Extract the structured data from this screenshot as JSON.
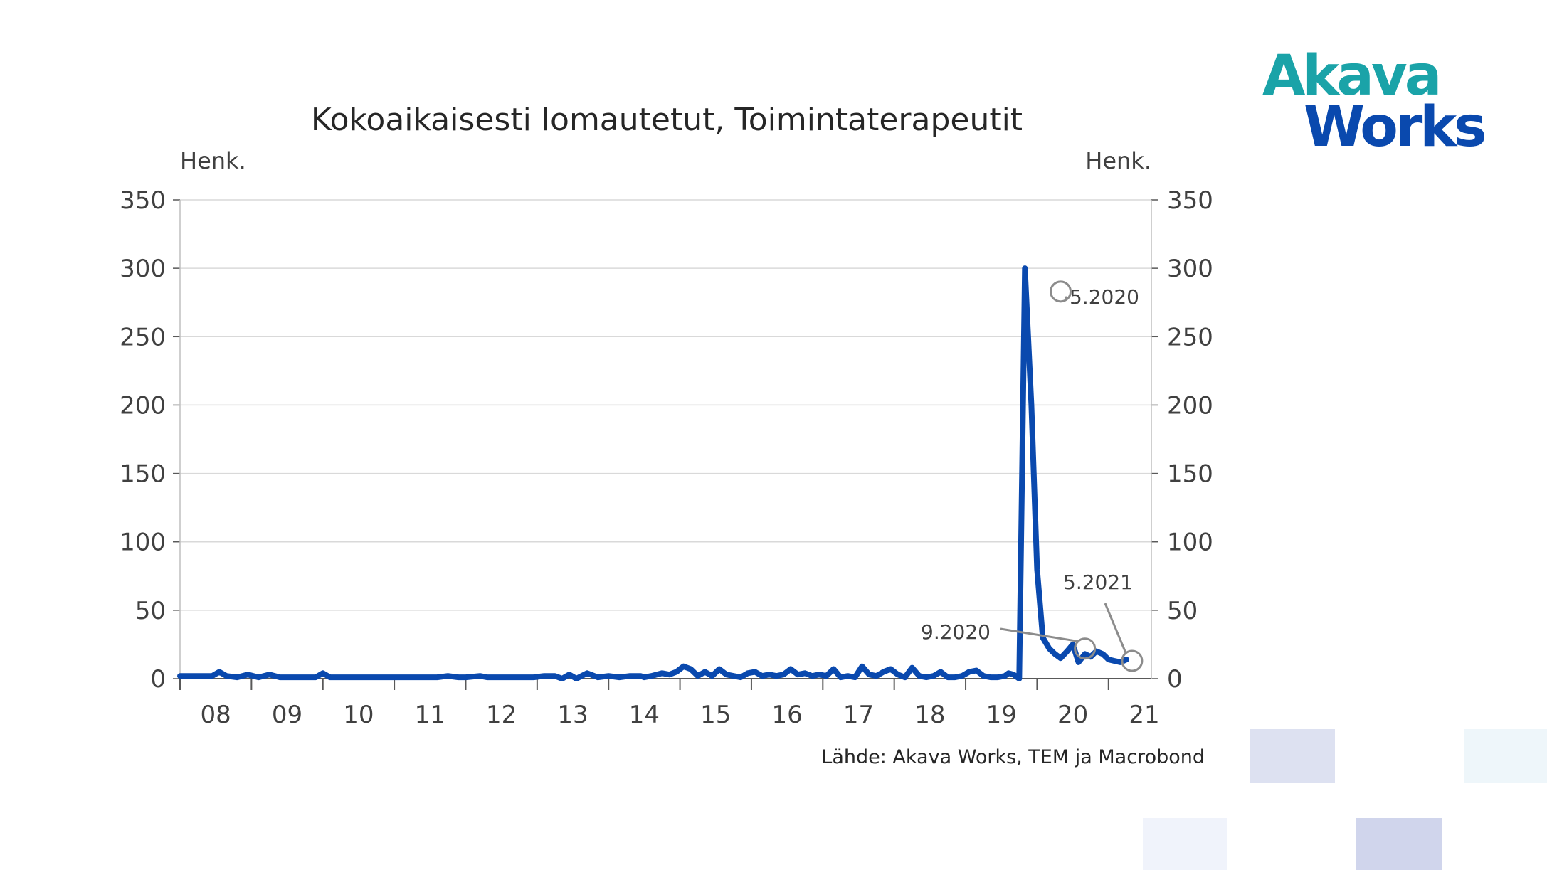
{
  "logo": {
    "line1": "Akava",
    "line2": "Works"
  },
  "colors": {
    "series": "#0a49ae",
    "grid": "#d9d9d9",
    "axis": "#595959",
    "logo_teal": "#1aa3a8",
    "logo_blue": "#0a49ae"
  },
  "source": "Lähde: Akava Works, TEM ja Macrobond",
  "chart_data": {
    "type": "line",
    "title": "Kokoaikaisesti lomautetut, Toimintaterapeutit",
    "ylabel_left": "Henk.",
    "ylabel_right": "Henk.",
    "ylim": [
      0,
      350
    ],
    "yticks": [
      0,
      50,
      100,
      150,
      200,
      250,
      300,
      350
    ],
    "xlim": [
      2008.0,
      2021.6
    ],
    "xtick_labels": [
      "08",
      "09",
      "10",
      "11",
      "12",
      "13",
      "14",
      "15",
      "16",
      "17",
      "18",
      "19",
      "20",
      "21"
    ],
    "grid": true,
    "series": [
      {
        "name": "",
        "color": "#0a49ae",
        "x": [
          2008.0,
          2008.25,
          2008.45,
          2008.55,
          2008.65,
          2008.8,
          2008.95,
          2009.1,
          2009.25,
          2009.4,
          2009.5,
          2009.6,
          2009.75,
          2009.9,
          2010.0,
          2010.1,
          2010.2,
          2010.3,
          2010.4,
          2010.5,
          2010.7,
          2010.9,
          2011.1,
          2011.3,
          2011.45,
          2011.6,
          2011.75,
          2011.9,
          2012.0,
          2012.2,
          2012.3,
          2012.45,
          2012.6,
          2012.8,
          2012.95,
          2013.1,
          2013.25,
          2013.35,
          2013.45,
          2013.55,
          2013.7,
          2013.85,
          2014.0,
          2014.15,
          2014.3,
          2014.45,
          2014.5,
          2014.6,
          2014.75,
          2014.85,
          2014.95,
          2015.05,
          2015.15,
          2015.25,
          2015.35,
          2015.45,
          2015.55,
          2015.65,
          2015.75,
          2015.85,
          2015.95,
          2016.05,
          2016.15,
          2016.25,
          2016.35,
          2016.45,
          2016.55,
          2016.65,
          2016.75,
          2016.85,
          2016.95,
          2017.05,
          2017.15,
          2017.25,
          2017.35,
          2017.45,
          2017.55,
          2017.65,
          2017.75,
          2017.85,
          2017.95,
          2018.05,
          2018.15,
          2018.25,
          2018.35,
          2018.45,
          2018.55,
          2018.65,
          2018.75,
          2018.85,
          2018.95,
          2019.05,
          2019.15,
          2019.25,
          2019.35,
          2019.45,
          2019.55,
          2019.6,
          2019.67,
          2019.75,
          2019.83,
          2019.92,
          2020.0,
          2020.08,
          2020.17,
          2020.25,
          2020.33,
          2020.42,
          2020.5,
          2020.58,
          2020.67,
          2020.75,
          2020.83,
          2020.92,
          2021.0,
          2021.08,
          2021.17,
          2021.25
        ],
        "values": [
          2,
          2,
          2,
          5,
          2,
          1,
          3,
          1,
          3,
          1,
          1,
          1,
          1,
          1,
          4,
          1,
          1,
          1,
          1,
          1,
          1,
          1,
          1,
          1,
          1,
          1,
          2,
          1,
          1,
          2,
          1,
          1,
          1,
          1,
          1,
          2,
          2,
          0,
          3,
          0,
          4,
          1,
          2,
          1,
          2,
          2,
          1,
          2,
          4,
          3,
          5,
          9,
          7,
          2,
          5,
          2,
          7,
          3,
          2,
          1,
          4,
          5,
          2,
          3,
          2,
          3,
          7,
          3,
          4,
          2,
          3,
          2,
          7,
          1,
          2,
          1,
          9,
          3,
          2,
          5,
          7,
          3,
          1,
          8,
          2,
          1,
          2,
          5,
          1,
          1,
          2,
          5,
          6,
          2,
          1,
          1,
          2,
          4,
          3,
          0,
          300,
          200,
          80,
          30,
          22,
          18,
          15,
          20,
          25,
          12,
          18,
          16,
          20,
          18,
          14,
          13,
          12,
          14
        ]
      }
    ],
    "annotations": [
      {
        "label": "5.2020",
        "x": 2020.33,
        "y": 283
      },
      {
        "label": "9.2020",
        "x": 2020.67,
        "y": 22
      },
      {
        "label": "5.2021",
        "x": 2021.33,
        "y": 13
      }
    ]
  }
}
